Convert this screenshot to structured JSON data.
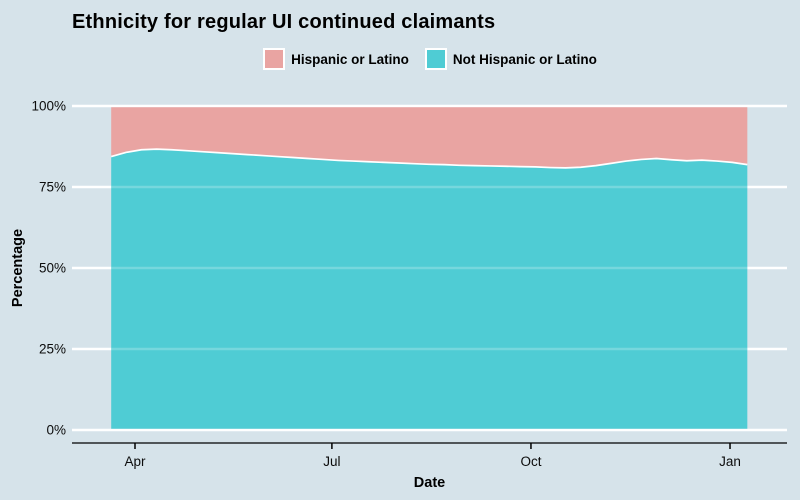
{
  "page": {
    "background": "#d6e3ea"
  },
  "title": "Ethnicity for regular UI continued claimants",
  "legend": {
    "items": [
      {
        "label": "Hispanic or Latino",
        "color": "#e9a4a2"
      },
      {
        "label": "Not Hispanic or Latino",
        "color": "#4fccd4"
      }
    ]
  },
  "axes": {
    "x": {
      "label": "Date",
      "ticks": [
        {
          "label": "Apr",
          "date": "2020-04-01"
        },
        {
          "label": "Jul",
          "date": "2020-07-01"
        },
        {
          "label": "Oct",
          "date": "2020-10-01"
        },
        {
          "label": "Jan",
          "date": "2021-01-01"
        }
      ]
    },
    "y": {
      "label": "Percentage",
      "ticks": [
        {
          "label": "100%",
          "value": 100
        },
        {
          "label": "75%",
          "value": 75
        },
        {
          "label": "50%",
          "value": 50
        },
        {
          "label": "25%",
          "value": 25
        },
        {
          "label": "0%",
          "value": 0
        }
      ]
    }
  },
  "chart_data": {
    "type": "area",
    "stacked": true,
    "title": "Ethnicity for regular UI continued claimants",
    "xlabel": "Date",
    "ylabel": "Percentage",
    "ylim": [
      0,
      100
    ],
    "legend_position": "top",
    "grid": "horizontal-white",
    "outline_color": "#ffffff",
    "x": [
      "2020-03-21",
      "2020-03-28",
      "2020-04-04",
      "2020-04-11",
      "2020-04-18",
      "2020-04-25",
      "2020-05-02",
      "2020-05-09",
      "2020-05-16",
      "2020-05-23",
      "2020-05-30",
      "2020-06-06",
      "2020-06-13",
      "2020-06-20",
      "2020-06-27",
      "2020-07-04",
      "2020-07-11",
      "2020-07-18",
      "2020-07-25",
      "2020-08-01",
      "2020-08-08",
      "2020-08-15",
      "2020-08-22",
      "2020-08-29",
      "2020-09-05",
      "2020-09-12",
      "2020-09-19",
      "2020-09-26",
      "2020-10-03",
      "2020-10-10",
      "2020-10-17",
      "2020-10-24",
      "2020-10-31",
      "2020-11-07",
      "2020-11-14",
      "2020-11-21",
      "2020-11-28",
      "2020-12-05",
      "2020-12-12",
      "2020-12-19",
      "2020-12-26",
      "2021-01-02",
      "2021-01-09"
    ],
    "series": [
      {
        "name": "Hispanic or Latino",
        "color": "#e9a4a2",
        "position": "top",
        "values": [
          15.6,
          14.3,
          13.5,
          13.3,
          13.5,
          13.8,
          14.1,
          14.4,
          14.7,
          15.0,
          15.3,
          15.6,
          15.9,
          16.2,
          16.5,
          16.8,
          17.0,
          17.2,
          17.4,
          17.6,
          17.8,
          18.0,
          18.1,
          18.3,
          18.4,
          18.5,
          18.6,
          18.7,
          18.8,
          19.0,
          19.1,
          18.9,
          18.4,
          17.7,
          17.0,
          16.5,
          16.2,
          16.6,
          16.9,
          16.7,
          17.0,
          17.4,
          18.1
        ]
      },
      {
        "name": "Not Hispanic or Latino",
        "color": "#4fccd4",
        "position": "bottom",
        "values": [
          84.4,
          85.7,
          86.5,
          86.7,
          86.5,
          86.2,
          85.9,
          85.6,
          85.3,
          85.0,
          84.7,
          84.4,
          84.1,
          83.8,
          83.5,
          83.2,
          83.0,
          82.8,
          82.6,
          82.4,
          82.2,
          82.0,
          81.9,
          81.7,
          81.6,
          81.5,
          81.4,
          81.3,
          81.2,
          81.0,
          80.9,
          81.1,
          81.6,
          82.3,
          83.0,
          83.5,
          83.8,
          83.4,
          83.1,
          83.3,
          83.0,
          82.6,
          81.9
        ]
      }
    ]
  }
}
